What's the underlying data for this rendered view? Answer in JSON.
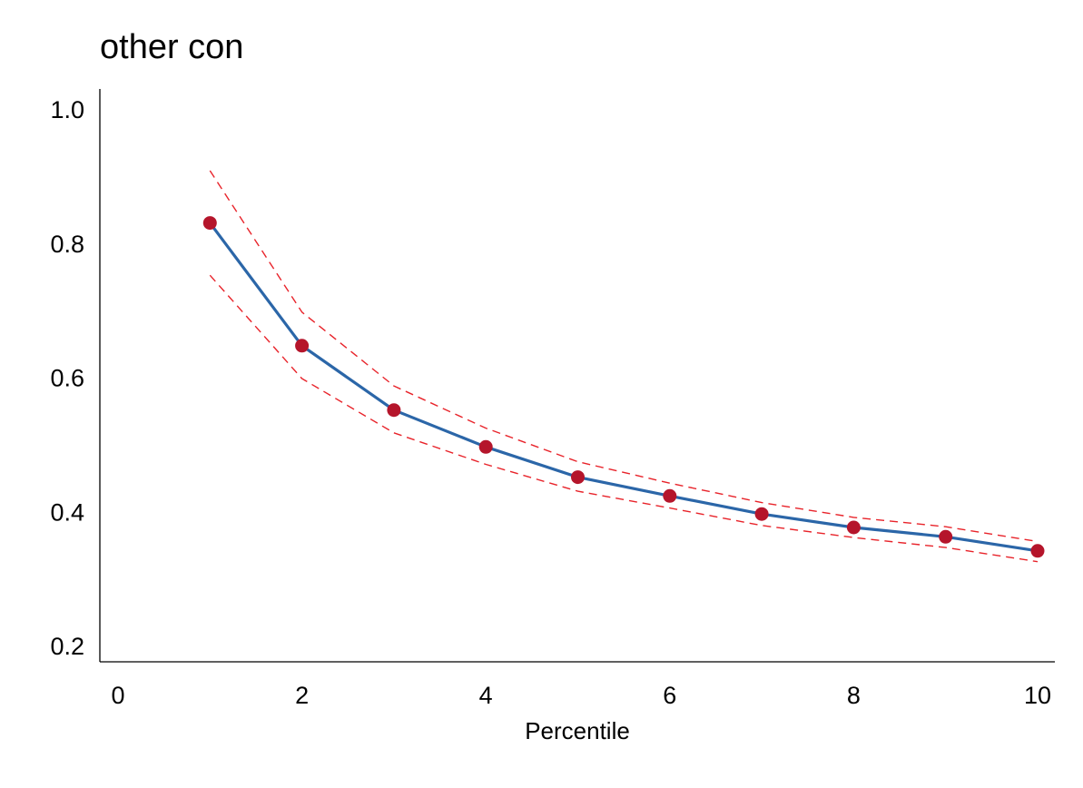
{
  "chart_data": {
    "type": "line",
    "title": "other con",
    "xlabel": "Percentile",
    "ylabel": "",
    "xlim": [
      0,
      10
    ],
    "ylim": [
      0.18,
      1.02
    ],
    "x_ticks": [
      0,
      2,
      4,
      6,
      8,
      10
    ],
    "x_tick_labels": [
      "0",
      "2",
      "4",
      "6",
      "8",
      "10"
    ],
    "y_ticks": [
      0.2,
      0.4,
      0.6,
      0.8,
      1.0
    ],
    "y_tick_labels": [
      "0.2",
      "0.4",
      "0.6",
      "0.8",
      "1.0"
    ],
    "grid": false,
    "series": [
      {
        "style": "solid line with markers",
        "line_color": "#2b66a8",
        "marker_color": "#b5152b",
        "x": [
          1,
          2,
          3,
          4,
          5,
          6,
          7,
          8,
          9,
          10
        ],
        "y": [
          0.83,
          0.647,
          0.551,
          0.496,
          0.451,
          0.423,
          0.396,
          0.376,
          0.362,
          0.341
        ]
      },
      {
        "style": "dashed",
        "line_color": "#e8232a",
        "x": [
          1,
          2,
          3,
          4,
          5,
          6,
          7,
          8,
          9,
          10
        ],
        "y": [
          0.908,
          0.697,
          0.587,
          0.524,
          0.474,
          0.442,
          0.413,
          0.391,
          0.377,
          0.355
        ]
      },
      {
        "style": "dashed",
        "line_color": "#e8232a",
        "x": [
          1,
          2,
          3,
          4,
          5,
          6,
          7,
          8,
          9,
          10
        ],
        "y": [
          0.752,
          0.598,
          0.517,
          0.47,
          0.43,
          0.405,
          0.379,
          0.361,
          0.346,
          0.325
        ]
      }
    ]
  }
}
